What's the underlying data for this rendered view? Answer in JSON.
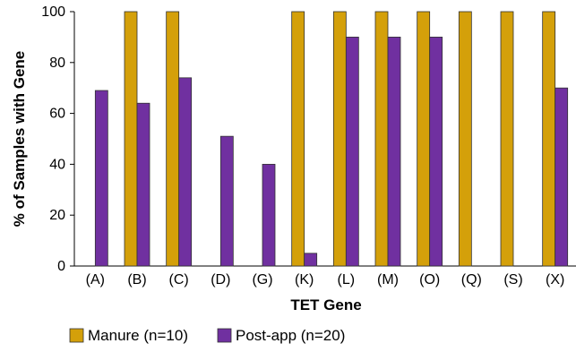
{
  "chart_data": {
    "type": "bar",
    "title": "",
    "xlabel": "TET Gene",
    "ylabel": "% of Samples with Gene",
    "ylim": [
      0,
      100
    ],
    "yticks": [
      "0",
      "20",
      "40",
      "60",
      "80",
      "100"
    ],
    "grid": false,
    "legend_position": "bottom-left",
    "categories": [
      "(A)",
      "(B)",
      "(C)",
      "(D)",
      "(G)",
      "(K)",
      "(L)",
      "(M)",
      "(O)",
      "(Q)",
      "(S)",
      "(X)"
    ],
    "series": [
      {
        "name": "Manure (n=10)",
        "color": "#D4A00A",
        "values": [
          0,
          100,
          100,
          0,
          0,
          100,
          100,
          100,
          100,
          100,
          100,
          100
        ]
      },
      {
        "name": "Post-app (n=20)",
        "color": "#7030A0",
        "values": [
          69,
          64,
          74,
          51,
          40,
          5,
          90,
          90,
          90,
          0,
          0,
          70
        ]
      }
    ]
  }
}
